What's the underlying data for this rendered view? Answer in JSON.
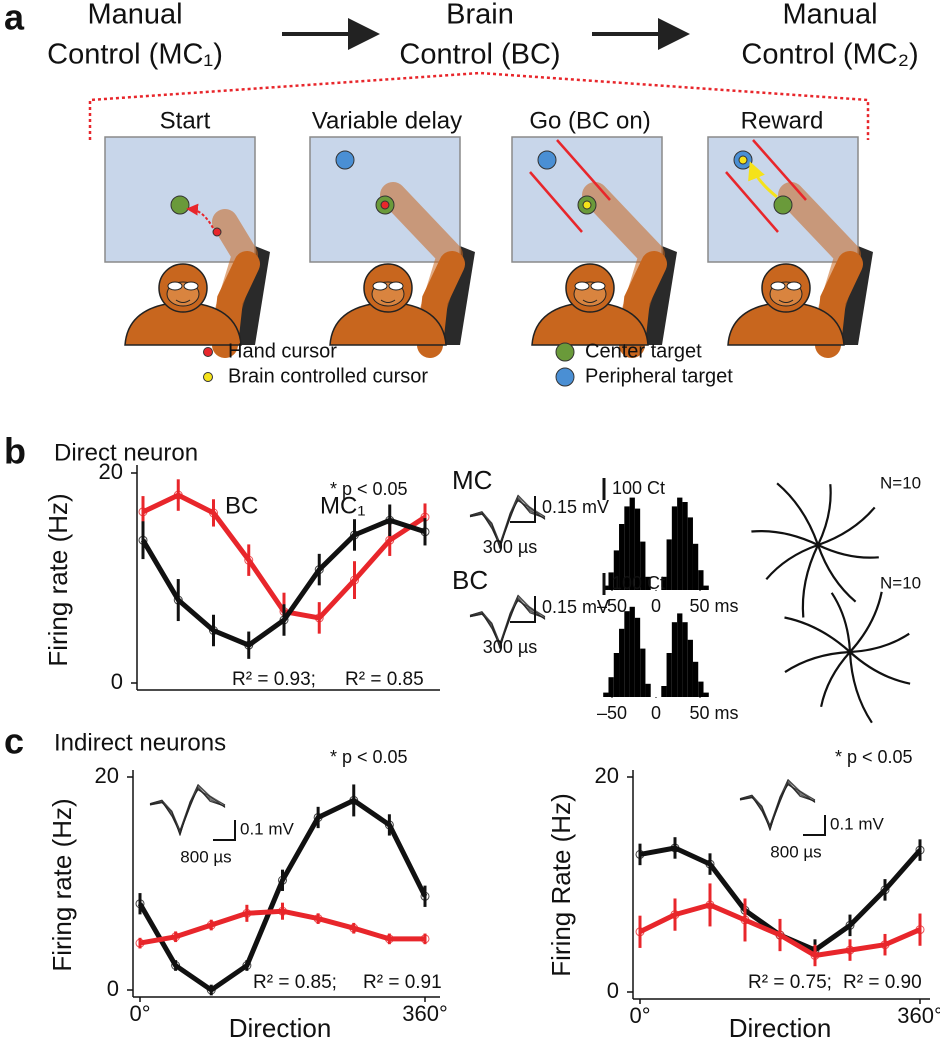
{
  "panel_a": {
    "letter": "a",
    "stages": [
      {
        "line1": "Manual",
        "line2": "Control (MC₁)",
        "color": "#111111"
      },
      {
        "line1": "Brain",
        "line2": "Control  (BC)",
        "color": "#e8262b"
      },
      {
        "line1": "Manual",
        "line2": "Control (MC₂)",
        "color": "#111111"
      }
    ],
    "phases": [
      "Start",
      "Variable delay",
      "Go (BC on)",
      "Reward"
    ],
    "legend": [
      {
        "label": "Hand cursor",
        "color": "#e8262b"
      },
      {
        "label": "Brain controlled cursor",
        "color": "#f5e21a"
      },
      {
        "label": "Center target",
        "color": "#6a9a3a"
      },
      {
        "label": "Peripheral target",
        "color": "#4a8fd4"
      }
    ]
  },
  "panel_b": {
    "letter": "b",
    "title": "Direct neuron",
    "rows": [
      {
        "label": "MC",
        "color": "#111111",
        "voltage_scale": "0.15 mV",
        "time_scale": "300 µs",
        "trajectory_note": "N=10"
      },
      {
        "label": "BC",
        "color": "#e8262b",
        "voltage_scale": "0.15 mV",
        "time_scale": "300 µs",
        "trajectory_note": "N=10"
      }
    ]
  },
  "panel_c": {
    "letter": "c",
    "title": "Indirect neurons"
  },
  "chart_data": [
    {
      "type": "line",
      "annotation": "* p < 0.05",
      "y_label": "Firing rate (Hz)",
      "x": [
        0,
        45,
        90,
        135,
        180,
        225,
        270,
        315,
        360
      ],
      "xlim": [
        0,
        360
      ],
      "ylim": [
        0,
        20
      ],
      "yticks": [
        0,
        20
      ],
      "series": [
        {
          "name": "BC",
          "color": "#e8262b",
          "values": [
            16.3,
            17.9,
            16.2,
            11.7,
            6.8,
            6.2,
            9.8,
            13.6,
            15.8
          ],
          "errors": [
            1.5,
            1.5,
            1.3,
            1.5,
            1.8,
            1.5,
            1.8,
            1.5,
            1.3
          ],
          "fit_label": "R² = 0.93;"
        },
        {
          "name": "MC₁",
          "color": "#111111",
          "values": [
            13.6,
            7.9,
            5.0,
            3.6,
            6.0,
            10.8,
            14.1,
            15.5,
            14.4
          ],
          "errors": [
            1.8,
            2.0,
            1.5,
            1.3,
            1.5,
            1.5,
            1.5,
            1.5,
            1.3
          ],
          "fit_label": "R² = 0.85"
        }
      ]
    },
    {
      "type": "line",
      "annotation": "* p < 0.05",
      "y_label": "Firing rate (Hz)",
      "x_label": "Direction",
      "x": [
        0,
        45,
        90,
        135,
        180,
        225,
        270,
        315,
        360
      ],
      "xlim": [
        0,
        360
      ],
      "ylim": [
        0,
        20
      ],
      "xticks": [
        {
          "value": 0,
          "label": "0°"
        },
        {
          "value": 360,
          "label": "360°"
        }
      ],
      "yticks": [
        0,
        20
      ],
      "inset": {
        "voltage_scale": "0.1 mV",
        "time_scale": "800 µs"
      },
      "series": [
        {
          "color": "#111111",
          "values": [
            8.1,
            2.3,
            0,
            2.3,
            10.3,
            16.2,
            17.8,
            15.5,
            8.8
          ],
          "errors": [
            1.0,
            0.5,
            0.5,
            0.5,
            1.0,
            1.0,
            1.5,
            1.0,
            1.0
          ],
          "fit_label": "R² = 0.91"
        },
        {
          "color": "#e8262b",
          "values": [
            4.4,
            5.0,
            6.1,
            7.2,
            7.4,
            6.7,
            5.8,
            4.8,
            4.8
          ],
          "errors": [
            0.5,
            0.5,
            0.5,
            0.8,
            0.8,
            0.5,
            0.5,
            0.5,
            0.5
          ],
          "fit_label": "R² = 0.85;"
        }
      ]
    },
    {
      "type": "line",
      "annotation": "* p < 0.05",
      "y_label": "Firing Rate (Hz)",
      "x_label": "Direction",
      "x": [
        0,
        45,
        90,
        135,
        180,
        225,
        270,
        315,
        360
      ],
      "xlim": [
        0,
        360
      ],
      "ylim": [
        0,
        20
      ],
      "xticks": [
        {
          "value": 0,
          "label": "0°"
        },
        {
          "value": 360,
          "label": "360°"
        }
      ],
      "yticks": [
        0,
        20
      ],
      "inset": {
        "voltage_scale": "0.1 mV",
        "time_scale": "800 µs"
      },
      "series": [
        {
          "color": "#111111",
          "values": [
            12.8,
            13.4,
            11.9,
            7.6,
            5.3,
            3.9,
            6.2,
            9.5,
            13.2
          ],
          "errors": [
            1.0,
            1.0,
            1.0,
            1.0,
            1.0,
            1.0,
            1.0,
            1.0,
            1.0
          ],
          "fit_label": "R² = 0.90"
        },
        {
          "color": "#e8262b",
          "values": [
            5.6,
            7.2,
            8.1,
            6.7,
            5.3,
            3.4,
            3.9,
            4.4,
            5.8
          ],
          "errors": [
            1.5,
            1.5,
            2.0,
            2.0,
            1.5,
            1.0,
            1.0,
            1.0,
            1.5
          ],
          "fit_label": "R² = 0.75;"
        }
      ]
    },
    {
      "type": "histogram",
      "color": "#000000",
      "bins": [
        -60,
        -54,
        -48,
        -42,
        -36,
        -30,
        -24,
        -18,
        -12,
        -6,
        0,
        6,
        12,
        18,
        24,
        30,
        36,
        42,
        48,
        54,
        60
      ],
      "values": [
        20,
        80,
        180,
        300,
        380,
        420,
        370,
        220,
        60,
        0,
        0,
        60,
        230,
        380,
        420,
        400,
        330,
        210,
        90,
        20
      ],
      "xlim": [
        -50,
        50
      ],
      "xticks": [
        {
          "value": -50,
          "label": "–50"
        },
        0,
        {
          "value": 50,
          "label": "50 ms"
        }
      ],
      "count_scale": {
        "value": 100,
        "label": "100 Ct"
      }
    },
    {
      "type": "histogram",
      "color": "#000000",
      "bins": [
        -60,
        -54,
        -48,
        -42,
        -36,
        -30,
        -24,
        -18,
        -12,
        -6,
        0,
        6,
        12,
        18,
        24,
        30,
        36,
        42,
        48,
        54,
        60
      ],
      "values": [
        20,
        90,
        200,
        310,
        390,
        410,
        360,
        220,
        60,
        0,
        0,
        50,
        200,
        340,
        380,
        340,
        260,
        160,
        70,
        20
      ],
      "xlim": [
        -50,
        50
      ],
      "xticks": [
        {
          "value": -50,
          "label": "–50"
        },
        0,
        {
          "value": 50,
          "label": "50 ms"
        }
      ],
      "count_scale": {
        "value": 100,
        "label": "100 Ct"
      }
    }
  ]
}
